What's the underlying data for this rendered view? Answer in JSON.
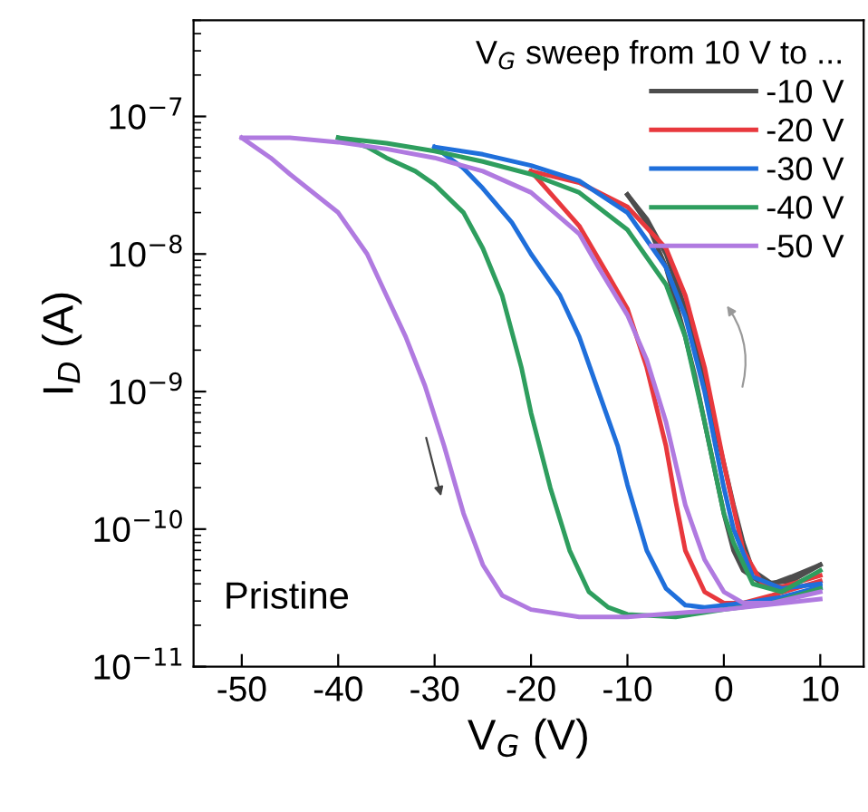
{
  "chart_data": {
    "type": "line",
    "xlabel": "V$_{G}$ (V)",
    "ylabel": "I$_{D}$ (A)",
    "legend_title": "V$_{G}$ sweep from 10 V to ...",
    "log": "y",
    "xlim": [
      -55,
      14.5
    ],
    "ylim": [
      1e-11,
      5e-07
    ],
    "xticks": [
      -50,
      -40,
      -30,
      -20,
      -10,
      0,
      10
    ],
    "yticks": [
      {
        "value": 1e-11,
        "label": "10$^{−11}$"
      },
      {
        "value": 1e-10,
        "label": "10$^{−10}$"
      },
      {
        "value": 1e-09,
        "label": "10$^{−9}$"
      },
      {
        "value": 1e-08,
        "label": "10$^{−8}$"
      },
      {
        "value": 1e-07,
        "label": "10$^{−7}$"
      }
    ],
    "grid": false,
    "legend": "top right",
    "marker": "none",
    "line_style": "solid",
    "annotations": [
      "Pristine"
    ],
    "series": [
      {
        "name": "-10 V",
        "color": "#4d4d4d",
        "x": [
          -10,
          -8,
          -6,
          -4,
          -3,
          -2,
          -1,
          0,
          1,
          2,
          3,
          5,
          7,
          10
        ],
        "values": [
          2.7e-08,
          1.8e-08,
          1e-08,
          4e-09,
          2.3e-09,
          1.2e-09,
          6e-10,
          3e-10,
          1.5e-10,
          8e-11,
          5e-11,
          4e-11,
          4.5e-11,
          5.5e-11
        ]
      },
      {
        "color": "#4d4d4d",
        "x": [
          -10,
          -8,
          -6,
          -4,
          -3,
          -2,
          -1,
          0,
          1,
          2,
          4,
          7,
          10
        ],
        "values": [
          2.7e-08,
          1.7e-08,
          8e-09,
          2.5e-09,
          1.3e-09,
          6e-10,
          2.8e-10,
          1.3e-10,
          7e-11,
          5e-11,
          4e-11,
          4.2e-11,
          5.5e-11
        ]
      },
      {
        "name": "-20 V",
        "color": "#e8383d",
        "x": [
          -20,
          -15,
          -10,
          -6,
          -4,
          -2,
          0,
          2,
          4,
          6,
          10
        ],
        "values": [
          4e-08,
          3.3e-08,
          2.2e-08,
          1.1e-08,
          5e-09,
          1.5e-09,
          3e-10,
          7e-11,
          4e-11,
          3.8e-11,
          4.6e-11
        ]
      },
      {
        "color": "#e8383d",
        "x": [
          -20,
          -15,
          -12,
          -10,
          -8,
          -6,
          -5,
          -4,
          -2,
          0,
          2,
          5,
          10
        ],
        "values": [
          4e-08,
          1.6e-08,
          7e-09,
          4e-09,
          1.5e-09,
          4e-10,
          1.6e-10,
          7e-11,
          3.5e-11,
          2.9e-11,
          2.9e-11,
          3.3e-11,
          4.2e-11
        ]
      },
      {
        "name": "-30 V",
        "color": "#1f6fdb",
        "x": [
          -30,
          -25,
          -20,
          -15,
          -10,
          -6,
          -4,
          -2,
          0,
          1,
          3,
          6,
          10
        ],
        "values": [
          6e-08,
          5.3e-08,
          4.4e-08,
          3.4e-08,
          2e-08,
          8e-09,
          3.5e-09,
          1e-09,
          2e-10,
          1e-10,
          4.5e-11,
          3.7e-11,
          4e-11
        ]
      },
      {
        "color": "#1f6fdb",
        "x": [
          -30,
          -27,
          -25,
          -22,
          -20,
          -17,
          -15,
          -13,
          -11,
          -10,
          -8,
          -6,
          -4,
          -2,
          2,
          6,
          10
        ],
        "values": [
          6e-08,
          4.2e-08,
          3e-08,
          1.7e-08,
          1e-08,
          5e-09,
          2.5e-09,
          1e-09,
          4e-10,
          2.1e-10,
          7e-11,
          3.7e-11,
          2.8e-11,
          2.7e-11,
          2.9e-11,
          3.2e-11,
          3.8e-11
        ]
      },
      {
        "name": "-40 V",
        "color": "#2e9e5e",
        "x": [
          -40,
          -35,
          -30,
          -25,
          -20,
          -15,
          -10,
          -6,
          -4,
          -2,
          0,
          1,
          3,
          6,
          10
        ],
        "values": [
          7e-08,
          6.4e-08,
          5.6e-08,
          4.7e-08,
          3.8e-08,
          2.8e-08,
          1.5e-08,
          6e-09,
          2.5e-09,
          6e-10,
          1.3e-10,
          8e-11,
          4e-11,
          3.5e-11,
          5e-11
        ]
      },
      {
        "color": "#2e9e5e",
        "x": [
          -40,
          -37,
          -35,
          -32,
          -30,
          -27,
          -25,
          -23,
          -21,
          -20,
          -18,
          -16,
          -14,
          -12,
          -10,
          -5,
          0,
          5,
          10
        ],
        "values": [
          7e-08,
          6e-08,
          5e-08,
          4e-08,
          3.2e-08,
          2e-08,
          1.1e-08,
          5e-09,
          1.5e-09,
          7e-10,
          2e-10,
          7e-11,
          3.5e-11,
          2.7e-11,
          2.4e-11,
          2.3e-11,
          2.6e-11,
          2.9e-11,
          3.7e-11
        ]
      },
      {
        "name": "-50 V",
        "color": "#b07ae0",
        "x": [
          -50,
          -45,
          -40,
          -35,
          -30,
          -25,
          -20,
          -15,
          -13,
          -10,
          -8,
          -6,
          -4,
          -2,
          0,
          2,
          5,
          10
        ],
        "values": [
          7e-08,
          7e-08,
          6.5e-08,
          5.8e-08,
          5e-08,
          4e-08,
          2.8e-08,
          1.4e-08,
          8e-09,
          3.6e-09,
          1.7e-09,
          6e-10,
          1.5e-10,
          6e-11,
          3.5e-11,
          2.9e-11,
          2.9e-11,
          3.5e-11
        ]
      },
      {
        "color": "#b07ae0",
        "x": [
          -50,
          -47,
          -45,
          -40,
          -37,
          -35,
          -33,
          -31,
          -29,
          -27,
          -25,
          -23,
          -20,
          -15,
          -10,
          0,
          10
        ],
        "values": [
          7e-08,
          5e-08,
          3.8e-08,
          2e-08,
          1e-08,
          5e-09,
          2.5e-09,
          1.1e-09,
          4e-10,
          1.3e-10,
          5.5e-11,
          3.3e-11,
          2.6e-11,
          2.3e-11,
          2.3e-11,
          2.6e-11,
          3.1e-11
        ]
      }
    ]
  }
}
